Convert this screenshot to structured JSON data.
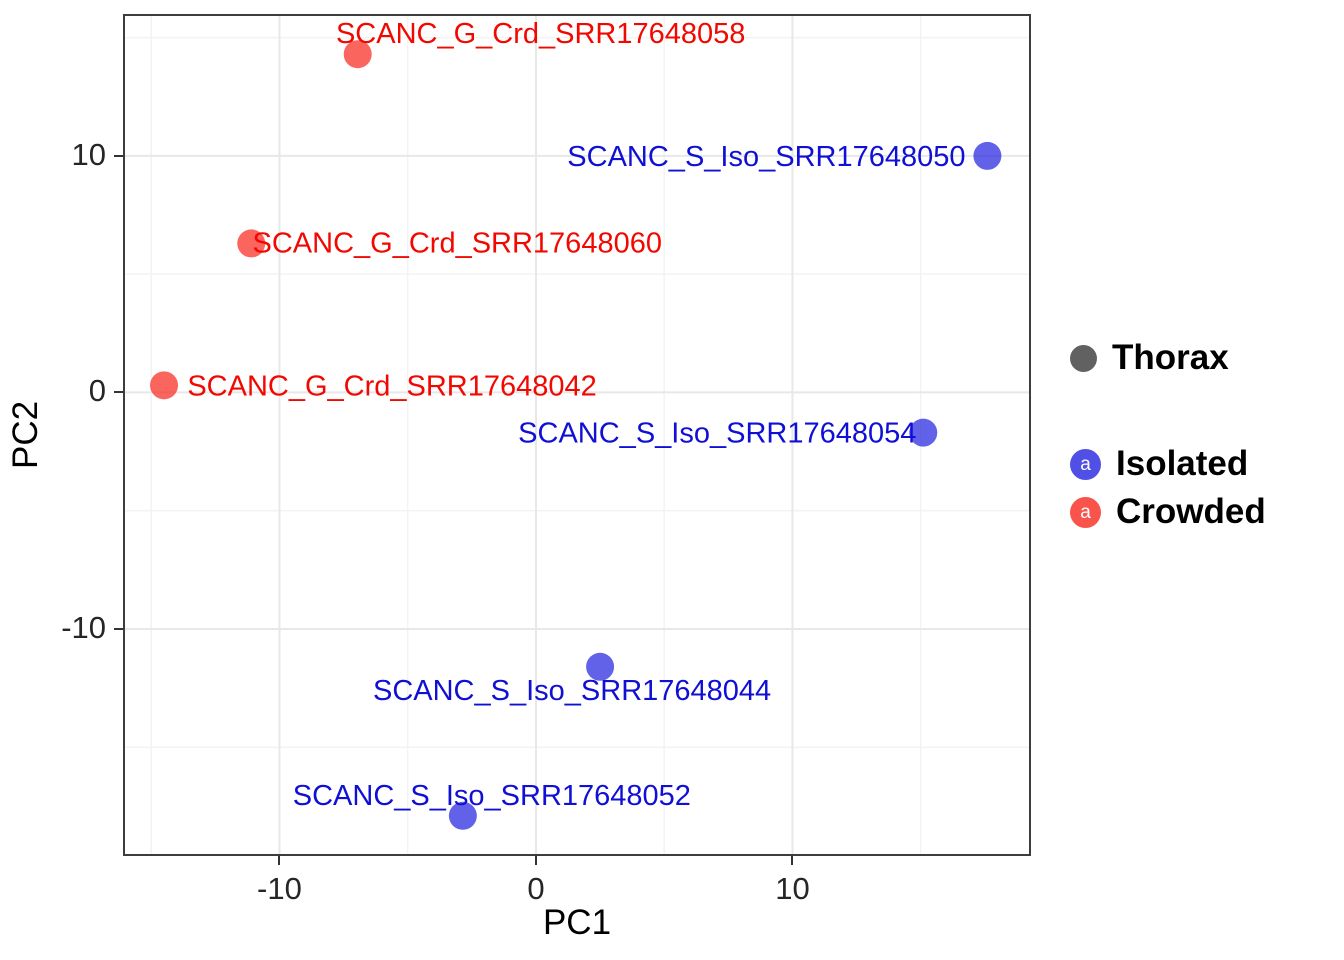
{
  "figure": {
    "background": "#ffffff"
  },
  "chart_data": {
    "type": "scatter",
    "title": "",
    "xlabel": "PC1",
    "ylabel": "PC2",
    "xlim": [
      -16.1,
      19.3
    ],
    "ylim": [
      -19.6,
      16.0
    ],
    "x_ticks": [
      -10,
      0,
      10
    ],
    "y_ticks": [
      -10,
      0,
      10
    ],
    "x_minor_ticks": [
      -15,
      -5,
      5,
      15
    ],
    "y_minor_ticks": [
      -15,
      -5,
      5,
      15
    ],
    "grid": true,
    "legend_position": "right",
    "point_radius": 14,
    "point_opacity": 0.7,
    "series": [
      {
        "name": "Crowded",
        "point_color": "#f8251a",
        "text_color": "#f10800",
        "points": [
          {
            "label": "SCANC_G_Crd_SRR17648058",
            "x": -6.95,
            "y": 14.3,
            "label_dx": 183,
            "label_dy": -11
          },
          {
            "label": "SCANC_G_Crd_SRR17648060",
            "x": -11.1,
            "y": 6.3,
            "label_dx": 206,
            "label_dy": 9
          },
          {
            "label": "SCANC_G_Crd_SRR17648042",
            "x": -14.5,
            "y": 0.3,
            "label_dx": 228,
            "label_dy": 10
          }
        ]
      },
      {
        "name": "Isolated",
        "point_color": "#2020e0",
        "text_color": "#0f0fd6",
        "points": [
          {
            "label": "SCANC_S_Iso_SRR17648050",
            "x": 17.6,
            "y": 10.0,
            "label_dx": -221,
            "label_dy": 10
          },
          {
            "label": "SCANC_S_Iso_SRR17648054",
            "x": 15.1,
            "y": -1.7,
            "label_dx": -206,
            "label_dy": 10
          },
          {
            "label": "SCANC_S_Iso_SRR17648044",
            "x": 2.5,
            "y": -11.6,
            "label_dx": -28,
            "label_dy": 33
          },
          {
            "label": "SCANC_S_Iso_SRR17648052",
            "x": -2.85,
            "y": -17.9,
            "label_dx": 29,
            "label_dy": -11
          }
        ]
      }
    ]
  },
  "legend": {
    "thorax": {
      "label": "Thorax",
      "color": "#616161"
    },
    "items": [
      {
        "label": "Isolated",
        "color": "#2020e0",
        "key_glyph": "a"
      },
      {
        "label": "Crowded",
        "color": "#f8251a",
        "key_glyph": "a"
      }
    ]
  },
  "style": {
    "grid_major_color": "#e8e8e8",
    "grid_minor_color": "#f3f3f3",
    "panel_border_color": "#3d3d3d"
  }
}
